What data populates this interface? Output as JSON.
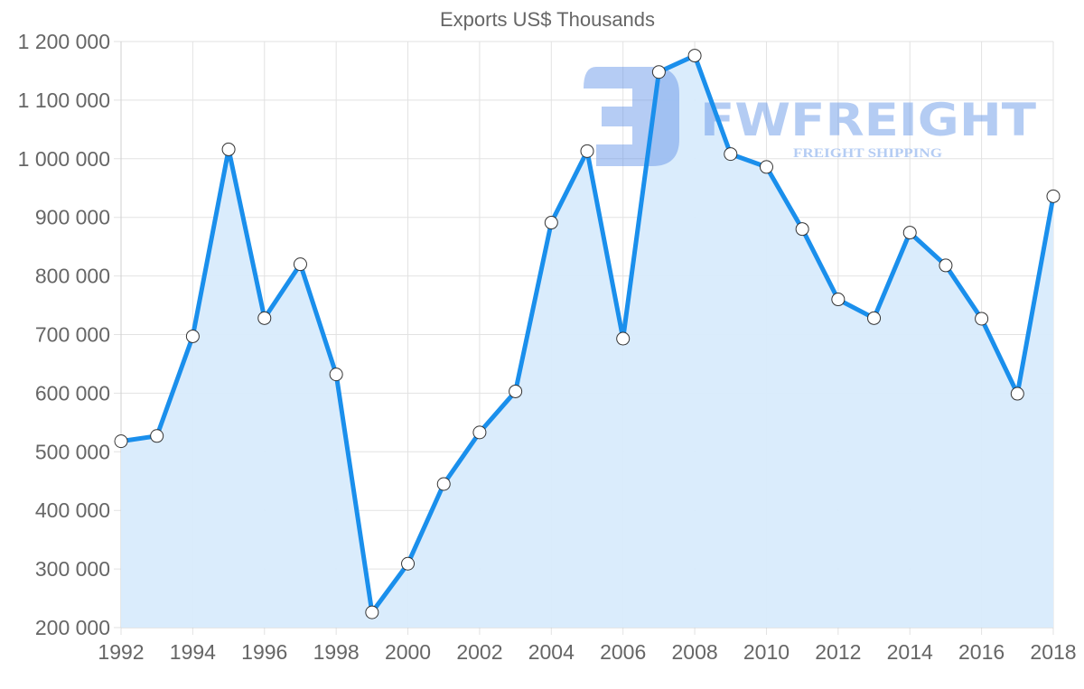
{
  "chart_data": {
    "type": "line",
    "title": "Exports US$ Thousands",
    "xlabel": "",
    "ylabel": "",
    "x": [
      1992,
      1993,
      1994,
      1995,
      1996,
      1997,
      1998,
      1999,
      2000,
      2001,
      2002,
      2003,
      2004,
      2005,
      2006,
      2007,
      2008,
      2009,
      2010,
      2011,
      2012,
      2013,
      2014,
      2015,
      2016,
      2017,
      2018
    ],
    "series": [
      {
        "name": "Exports US$ Thousands",
        "values": [
          518000,
          527000,
          697000,
          1016000,
          728000,
          820000,
          632000,
          226000,
          309000,
          445000,
          533000,
          603000,
          891000,
          1013000,
          693000,
          1148000,
          1176000,
          1008000,
          986000,
          880000,
          760000,
          728000,
          874000,
          818000,
          727000,
          599000,
          936000
        ]
      }
    ],
    "ylim": [
      200000,
      1200000
    ],
    "yticks": [
      200000,
      300000,
      400000,
      500000,
      600000,
      700000,
      800000,
      900000,
      1000000,
      1100000,
      1200000
    ],
    "ytick_labels": [
      "200 000",
      "300 000",
      "400 000",
      "500 000",
      "600 000",
      "700 000",
      "800 000",
      "900 000",
      "1 000 000",
      "1 100 000",
      "1 200 000"
    ],
    "xticks": [
      1992,
      1994,
      1996,
      1998,
      2000,
      2002,
      2004,
      2006,
      2008,
      2010,
      2012,
      2014,
      2016,
      2018
    ],
    "xtick_labels": [
      "1992",
      "1994",
      "1996",
      "1998",
      "2000",
      "2002",
      "2004",
      "2006",
      "2008",
      "2010",
      "2012",
      "2014",
      "2016",
      "2018"
    ],
    "grid": true,
    "legend": null,
    "fill": true
  },
  "colors": {
    "line": "#1a8fec",
    "fill": "#d8ebfc",
    "grid": "#e2e2e2",
    "text": "#666666",
    "marker_fill": "#ffffff",
    "marker_stroke": "#333333",
    "watermark": "#5b8fe6"
  },
  "watermark": {
    "brand": "FWFREIGHT",
    "tagline": "FREIGHT SHIPPING"
  }
}
